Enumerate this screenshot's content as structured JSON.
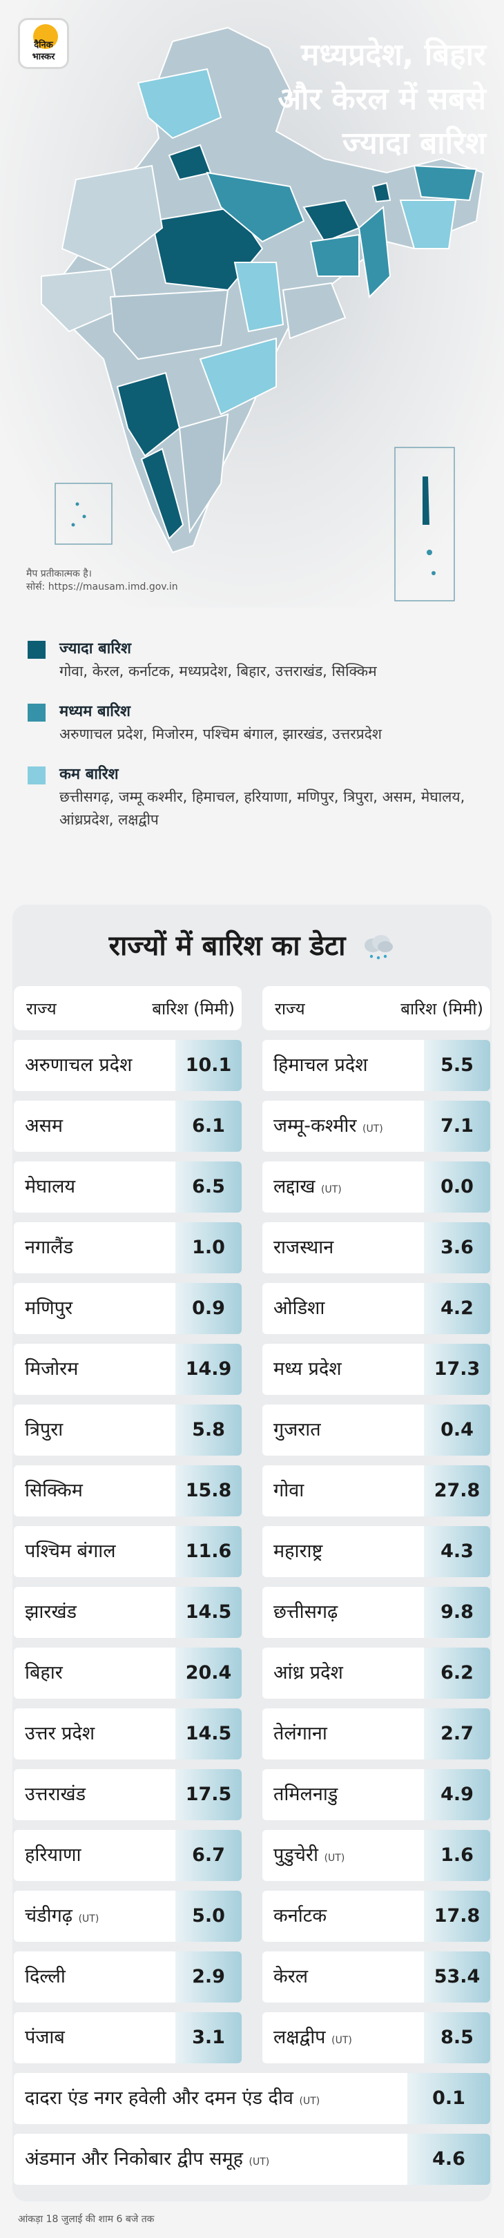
{
  "header": {
    "logo_text": "दैनिक\nभास्कर",
    "headline_line1": "मध्यप्रदेश, बिहार",
    "headline_line2": "और केरल में सबसे",
    "headline_line3": "ज्यादा बारिश"
  },
  "map": {
    "note_line1": "मैप प्रतीकात्मक है।",
    "note_line2": "सोर्स: https://mausam.imd.gov.in"
  },
  "legend": [
    {
      "title": "ज्यादा बारिश",
      "states": "गोवा, केरल, कर्नाटक, मध्यप्रदेश, बिहार, उत्तराखंड, सिक्किम",
      "color": "#0d5d73"
    },
    {
      "title": "मध्यम बारिश",
      "states": "अरुणाचल प्रदेश, मिजोरम, पश्चिम बंगाल, झारखंड, उत्तरप्रदेश",
      "color": "#3592a9"
    },
    {
      "title": "कम बारिश",
      "states": "छत्तीसगढ़, जम्मू कश्मीर, हिमाचल, हरियाणा, मणिपुर, त्रिपुरा, असम, मेघालय, आंध्रप्रदेश, लक्षद्वीप",
      "color": "#88cde0"
    }
  ],
  "table": {
    "title": "राज्यों में बारिश का डेटा",
    "col_state": "राज्य",
    "col_rain": "बारिश (मिमी)",
    "ut_tag": "(UT)",
    "left": [
      {
        "state": "अरुणाचल प्रदेश",
        "value": "10.1"
      },
      {
        "state": "असम",
        "value": "6.1"
      },
      {
        "state": "मेघालय",
        "value": "6.5"
      },
      {
        "state": "नगालैंड",
        "value": "1.0"
      },
      {
        "state": "मणिपुर",
        "value": "0.9"
      },
      {
        "state": "मिजोरम",
        "value": "14.9"
      },
      {
        "state": "त्रिपुरा",
        "value": "5.8"
      },
      {
        "state": "सिक्किम",
        "value": "15.8"
      },
      {
        "state": "पश्चिम बंगाल",
        "value": "11.6"
      },
      {
        "state": "झारखंड",
        "value": "14.5"
      },
      {
        "state": "बिहार",
        "value": "20.4"
      },
      {
        "state": "उत्तर प्रदेश",
        "value": "14.5"
      },
      {
        "state": "उत्तराखंड",
        "value": "17.5"
      },
      {
        "state": "हरियाणा",
        "value": "6.7"
      },
      {
        "state": "चंडीगढ़",
        "value": "5.0",
        "ut": true
      },
      {
        "state": "दिल्ली",
        "value": "2.9"
      },
      {
        "state": "पंजाब",
        "value": "3.1"
      }
    ],
    "right": [
      {
        "state": "हिमाचल प्रदेश",
        "value": "5.5"
      },
      {
        "state": "जम्मू-कश्मीर",
        "value": "7.1",
        "ut": true
      },
      {
        "state": "लद्दाख",
        "value": "0.0",
        "ut": true
      },
      {
        "state": "राजस्थान",
        "value": "3.6"
      },
      {
        "state": "ओडिशा",
        "value": "4.2"
      },
      {
        "state": "मध्य प्रदेश",
        "value": "17.3"
      },
      {
        "state": "गुजरात",
        "value": "0.4"
      },
      {
        "state": "गोवा",
        "value": "27.8"
      },
      {
        "state": "महाराष्ट्र",
        "value": "4.3"
      },
      {
        "state": "छत्तीसगढ़",
        "value": "9.8"
      },
      {
        "state": "आंध्र प्रदेश",
        "value": "6.2"
      },
      {
        "state": "तेलंगाना",
        "value": "2.7"
      },
      {
        "state": "तमिलनाडु",
        "value": "4.9"
      },
      {
        "state": "पुडुचेरी",
        "value": "1.6",
        "ut": true
      },
      {
        "state": "कर्नाटक",
        "value": "17.8"
      },
      {
        "state": "केरल",
        "value": "53.4"
      },
      {
        "state": "लक्षद्वीप",
        "value": "8.5",
        "ut": true
      }
    ],
    "wide": [
      {
        "state": "दादरा एंड नगर हवेली और दमन एंड दीव",
        "value": "0.1",
        "ut": true
      },
      {
        "state": "अंडमान और निकोबार द्वीप समूह",
        "value": "4.6",
        "ut": true
      }
    ]
  },
  "footer": {
    "note": "आंकड़ा 18 जुलाई की शाम 6 बजे तक"
  }
}
